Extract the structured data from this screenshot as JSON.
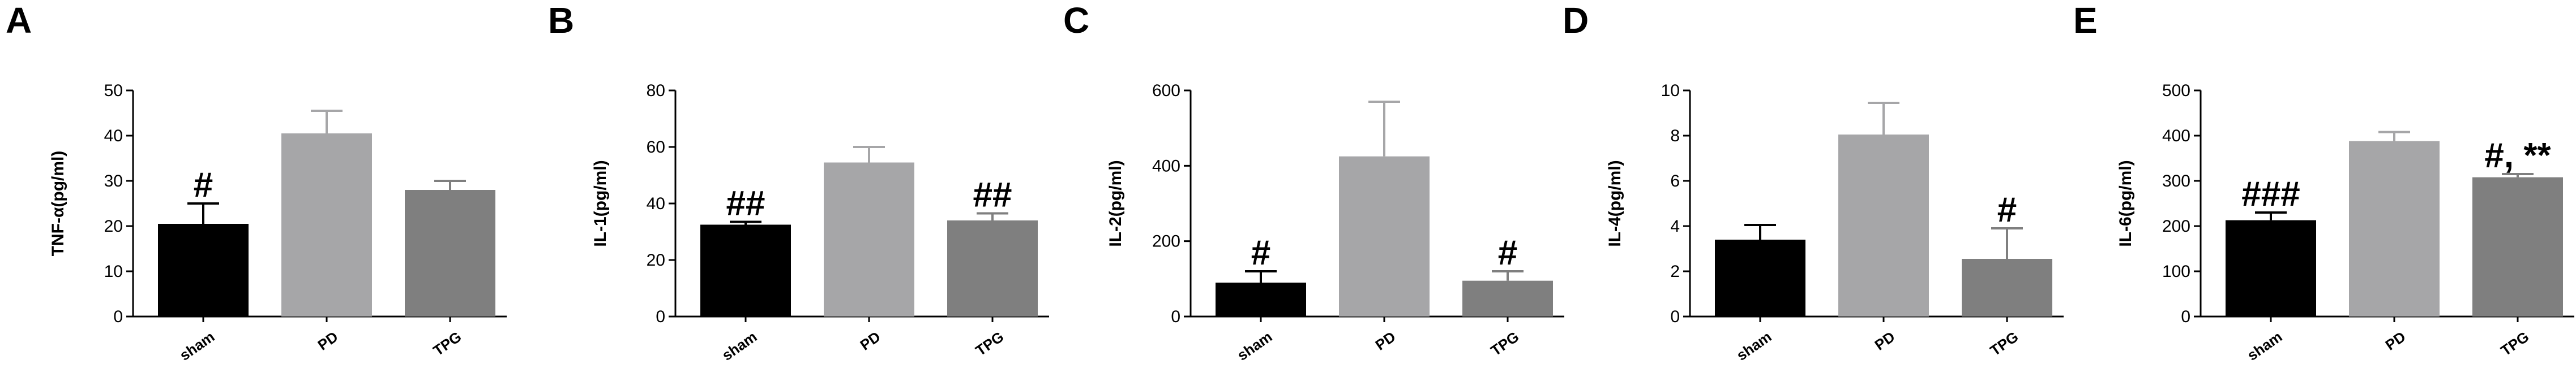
{
  "chart_data": [
    {
      "type": "bar",
      "title": "A",
      "ylabel": "TNF-α(pg/ml)",
      "categories": [
        "sham",
        "PD",
        "TPG"
      ],
      "values": [
        20.5,
        40.5,
        28
      ],
      "errors": [
        4.5,
        5,
        2
      ],
      "colors": [
        "#000000",
        "#a6a6a8",
        "#7f7f7f"
      ],
      "ylim": [
        0,
        50
      ],
      "yticks": [
        0,
        10,
        20,
        30,
        40,
        50
      ],
      "annotations": [
        {
          "text": "#",
          "category": "sham"
        }
      ]
    },
    {
      "type": "bar",
      "title": "B",
      "ylabel": "IL-1(pg/ml)",
      "categories": [
        "sham",
        "PD",
        "TPG"
      ],
      "values": [
        32.5,
        54.5,
        34
      ],
      "errors": [
        1,
        5.5,
        2.5
      ],
      "colors": [
        "#000000",
        "#a6a6a8",
        "#7f7f7f"
      ],
      "ylim": [
        0,
        80
      ],
      "yticks": [
        0,
        20,
        40,
        60,
        80
      ],
      "annotations": [
        {
          "text": "##",
          "category": "sham"
        },
        {
          "text": "##",
          "category": "TPG"
        }
      ]
    },
    {
      "type": "bar",
      "title": "C",
      "ylabel": "IL-2(pg/ml)",
      "categories": [
        "sham",
        "PD",
        "TPG"
      ],
      "values": [
        90,
        425,
        95
      ],
      "errors": [
        30,
        145,
        25
      ],
      "colors": [
        "#000000",
        "#a6a6a8",
        "#7f7f7f"
      ],
      "ylim": [
        0,
        600
      ],
      "yticks": [
        0,
        200,
        400,
        600
      ],
      "annotations": [
        {
          "text": "#",
          "category": "sham"
        },
        {
          "text": "#",
          "category": "TPG"
        }
      ]
    },
    {
      "type": "bar",
      "title": "D",
      "ylabel": "IL-4(pg/ml)",
      "categories": [
        "sham",
        "PD",
        "TPG"
      ],
      "values": [
        3.4,
        8.05,
        2.55
      ],
      "errors": [
        0.65,
        1.4,
        1.35
      ],
      "colors": [
        "#000000",
        "#a6a6a8",
        "#7f7f7f"
      ],
      "ylim": [
        0,
        10
      ],
      "yticks": [
        0,
        2,
        4,
        6,
        8,
        10
      ],
      "annotations": [
        {
          "text": "#",
          "category": "TPG"
        }
      ]
    },
    {
      "type": "bar",
      "title": "E",
      "ylabel": "IL-6(pg/ml)",
      "categories": [
        "sham",
        "PD",
        "TPG"
      ],
      "values": [
        213,
        388,
        308
      ],
      "errors": [
        17,
        20,
        7
      ],
      "colors": [
        "#000000",
        "#a6a6a8",
        "#7f7f7f"
      ],
      "ylim": [
        0,
        500
      ],
      "yticks": [
        0,
        100,
        200,
        300,
        400,
        500
      ],
      "annotations": [
        {
          "text": "###",
          "category": "sham"
        },
        {
          "text": "#, **",
          "category": "TPG"
        }
      ]
    }
  ]
}
